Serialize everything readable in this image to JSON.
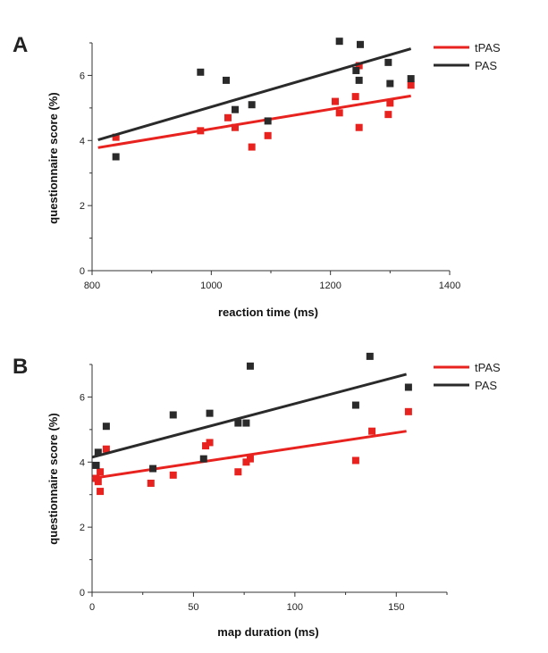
{
  "colors": {
    "tPAS": "#e8231f",
    "PAS": "#2a2a2a"
  },
  "chart_data": [
    {
      "panel": "A",
      "type": "scatter",
      "xlabel": "reaction time (ms)",
      "ylabel": "questionnaire score (%)",
      "xlim": [
        800,
        1400
      ],
      "ylim": [
        0,
        7
      ],
      "x_ticks": [
        800,
        1000,
        1200,
        1400
      ],
      "y_ticks": [
        0,
        2,
        4,
        6
      ],
      "legend": [
        "tPAS",
        "PAS"
      ],
      "legend_position": "top-right",
      "series": [
        {
          "name": "tPAS",
          "color": "#e8231f",
          "points": [
            [
              840,
              4.1
            ],
            [
              982,
              4.3
            ],
            [
              1028,
              4.7
            ],
            [
              1040,
              4.4
            ],
            [
              1068,
              3.8
            ],
            [
              1095,
              4.15
            ],
            [
              1208,
              5.2
            ],
            [
              1215,
              4.85
            ],
            [
              1242,
              5.35
            ],
            [
              1248,
              6.3
            ],
            [
              1248,
              4.4
            ],
            [
              1297,
              4.8
            ],
            [
              1300,
              5.15
            ],
            [
              1335,
              5.7
            ]
          ],
          "fit": {
            "x": [
              810,
              1335
            ],
            "y": [
              3.78,
              5.37
            ]
          }
        },
        {
          "name": "PAS",
          "color": "#2a2a2a",
          "points": [
            [
              840,
              3.5
            ],
            [
              982,
              6.1
            ],
            [
              1025,
              5.85
            ],
            [
              1040,
              4.95
            ],
            [
              1068,
              5.1
            ],
            [
              1095,
              4.6
            ],
            [
              1215,
              7.05
            ],
            [
              1243,
              6.15
            ],
            [
              1248,
              5.85
            ],
            [
              1250,
              6.95
            ],
            [
              1297,
              6.4
            ],
            [
              1300,
              5.75
            ],
            [
              1335,
              5.9
            ]
          ],
          "fit": {
            "x": [
              810,
              1335
            ],
            "y": [
              4.02,
              6.82
            ]
          }
        }
      ]
    },
    {
      "panel": "B",
      "type": "scatter",
      "xlabel": "map duration (ms)",
      "ylabel": "questionnaire score (%)",
      "xlim": [
        0,
        175
      ],
      "ylim": [
        0,
        7
      ],
      "x_ticks": [
        0,
        50,
        100,
        150
      ],
      "y_ticks": [
        0,
        2,
        4,
        6
      ],
      "legend": [
        "tPAS",
        "PAS"
      ],
      "legend_position": "top-right",
      "series": [
        {
          "name": "tPAS",
          "color": "#e8231f",
          "points": [
            [
              2,
              3.5
            ],
            [
              3,
              3.4
            ],
            [
              4,
              3.7
            ],
            [
              4,
              3.1
            ],
            [
              7,
              4.4
            ],
            [
              29,
              3.35
            ],
            [
              40,
              3.6
            ],
            [
              56,
              4.5
            ],
            [
              58,
              4.6
            ],
            [
              72,
              3.7
            ],
            [
              76,
              4.0
            ],
            [
              78,
              4.1
            ],
            [
              130,
              4.05
            ],
            [
              138,
              4.95
            ],
            [
              156,
              5.55
            ]
          ],
          "fit": {
            "x": [
              0,
              155
            ],
            "y": [
              3.5,
              4.95
            ]
          }
        },
        {
          "name": "PAS",
          "color": "#2a2a2a",
          "points": [
            [
              2,
              3.9
            ],
            [
              3,
              4.3
            ],
            [
              7,
              5.1
            ],
            [
              30,
              3.8
            ],
            [
              40,
              5.45
            ],
            [
              55,
              4.1
            ],
            [
              58,
              5.5
            ],
            [
              72,
              5.2
            ],
            [
              76,
              5.2
            ],
            [
              78,
              6.95
            ],
            [
              130,
              5.75
            ],
            [
              137,
              7.25
            ],
            [
              156,
              6.3
            ]
          ],
          "fit": {
            "x": [
              0,
              155
            ],
            "y": [
              4.15,
              6.7
            ]
          }
        }
      ]
    }
  ]
}
